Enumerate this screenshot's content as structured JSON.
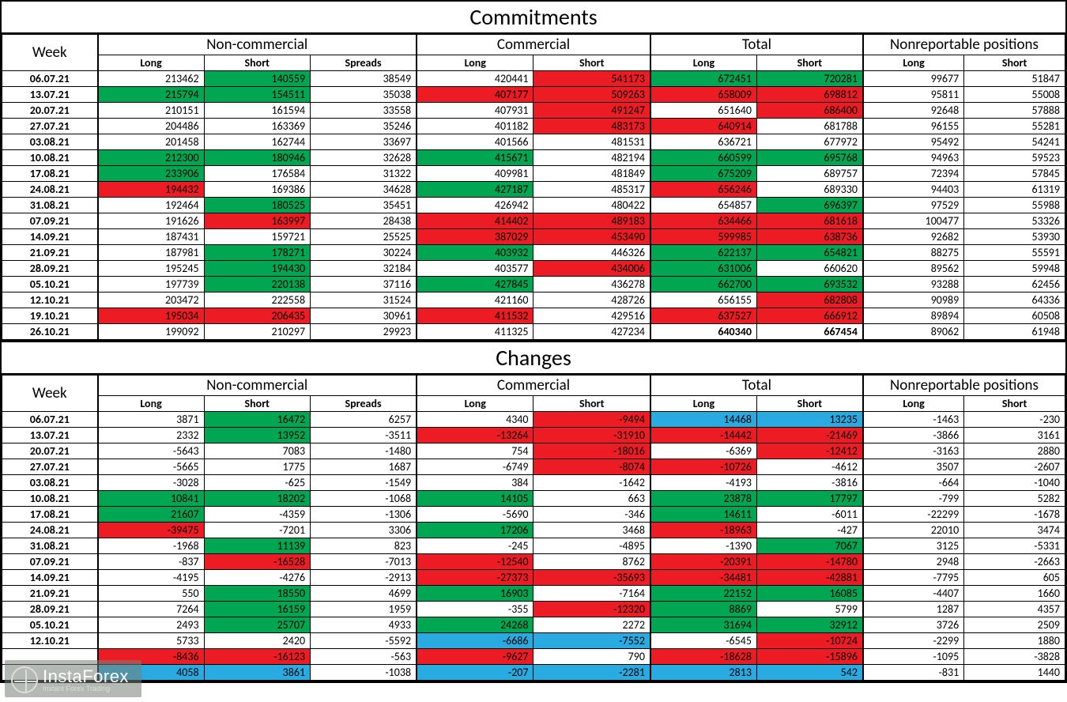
{
  "title_top": "Commitments",
  "title_bottom": "Changes",
  "colgroups": {
    "week": "Week",
    "nc": "Non-commercial",
    "co": "Commercial",
    "tot": "Total",
    "nr": "Nonreportable positions"
  },
  "subcols": [
    "Long",
    "Short",
    "Spreads",
    "Long",
    "Short",
    "Long",
    "Short",
    "Long",
    "Short"
  ],
  "colors": {
    "green": "#00a651",
    "red": "#ed1c24",
    "blue": "#29abe2",
    "none": ""
  },
  "col_widths_pct": [
    9,
    10,
    10,
    10,
    11,
    11,
    10,
    10,
    9.5,
    9.5
  ],
  "font": {
    "section_title_size": 28,
    "group_size": 19,
    "sub_size": 14,
    "cell_size": 14
  },
  "last_row_bold_cols": [
    5,
    6
  ],
  "commitments_rows": [
    {
      "week": "06.07.21",
      "v": [
        213462,
        140559,
        38549,
        420441,
        541173,
        672451,
        720281,
        99677,
        51847
      ],
      "c": [
        "",
        "g",
        "",
        "",
        "r",
        "g",
        "g",
        "",
        ""
      ]
    },
    {
      "week": "13.07.21",
      "v": [
        215794,
        154511,
        35038,
        407177,
        509263,
        658009,
        698812,
        95811,
        55008
      ],
      "c": [
        "g",
        "g",
        "",
        "r",
        "r",
        "r",
        "r",
        "",
        ""
      ]
    },
    {
      "week": "20.07.21",
      "v": [
        210151,
        161594,
        33558,
        407931,
        491247,
        651640,
        686400,
        92648,
        57888
      ],
      "c": [
        "",
        "",
        "",
        "",
        "r",
        "",
        "r",
        "",
        ""
      ]
    },
    {
      "week": "27.07.21",
      "v": [
        204486,
        163369,
        35246,
        401182,
        483173,
        640914,
        681788,
        96155,
        55281
      ],
      "c": [
        "",
        "",
        "",
        "",
        "r",
        "r",
        "",
        "",
        ""
      ]
    },
    {
      "week": "03.08.21",
      "v": [
        201458,
        162744,
        33697,
        401566,
        481531,
        636721,
        677972,
        95492,
        54241
      ],
      "c": [
        "",
        "",
        "",
        "",
        "",
        "",
        "",
        "",
        ""
      ]
    },
    {
      "week": "10.08.21",
      "v": [
        212300,
        180946,
        32628,
        415671,
        482194,
        660599,
        695768,
        94963,
        59523
      ],
      "c": [
        "g",
        "g",
        "",
        "g",
        "",
        "g",
        "g",
        "",
        ""
      ]
    },
    {
      "week": "17.08.21",
      "v": [
        233906,
        176584,
        31322,
        409981,
        481849,
        675209,
        689757,
        72394,
        57845
      ],
      "c": [
        "g",
        "",
        "",
        "",
        "",
        "g",
        "",
        "",
        ""
      ]
    },
    {
      "week": "24.08.21",
      "v": [
        194432,
        169386,
        34628,
        427187,
        485317,
        656246,
        689330,
        94403,
        61319
      ],
      "c": [
        "r",
        "",
        "",
        "g",
        "",
        "r",
        "",
        "",
        ""
      ]
    },
    {
      "week": "31.08.21",
      "v": [
        192464,
        180525,
        35451,
        426942,
        480422,
        654857,
        696397,
        97529,
        55988
      ],
      "c": [
        "",
        "g",
        "",
        "",
        "",
        "",
        "g",
        "",
        ""
      ]
    },
    {
      "week": "07.09.21",
      "v": [
        191626,
        163997,
        28438,
        414402,
        489183,
        634466,
        681618,
        100477,
        53326
      ],
      "c": [
        "",
        "r",
        "",
        "r",
        "r",
        "r",
        "r",
        "",
        ""
      ]
    },
    {
      "week": "14.09.21",
      "v": [
        187431,
        159721,
        25525,
        387029,
        453490,
        599985,
        638736,
        92682,
        53930
      ],
      "c": [
        "",
        "",
        "",
        "r",
        "r",
        "r",
        "r",
        "",
        ""
      ]
    },
    {
      "week": "21.09.21",
      "v": [
        187981,
        178271,
        30224,
        403932,
        446326,
        622137,
        654821,
        88275,
        55591
      ],
      "c": [
        "",
        "g",
        "",
        "g",
        "",
        "g",
        "g",
        "",
        ""
      ]
    },
    {
      "week": "28.09.21",
      "v": [
        195245,
        194430,
        32184,
        403577,
        434006,
        631006,
        660620,
        89562,
        59948
      ],
      "c": [
        "",
        "g",
        "",
        "",
        "r",
        "g",
        "",
        "",
        ""
      ]
    },
    {
      "week": "05.10.21",
      "v": [
        197739,
        220138,
        37116,
        427845,
        436278,
        662700,
        693532,
        93288,
        62456
      ],
      "c": [
        "",
        "g",
        "",
        "g",
        "",
        "g",
        "g",
        "",
        ""
      ]
    },
    {
      "week": "12.10.21",
      "v": [
        203472,
        222558,
        31524,
        421160,
        428726,
        656155,
        682808,
        90989,
        64336
      ],
      "c": [
        "",
        "",
        "",
        "",
        "",
        "",
        "r",
        "",
        ""
      ]
    },
    {
      "week": "19.10.21",
      "v": [
        195034,
        206435,
        30961,
        411532,
        429516,
        637527,
        666912,
        89894,
        60508
      ],
      "c": [
        "r",
        "r",
        "",
        "r",
        "",
        "r",
        "r",
        "",
        ""
      ]
    },
    {
      "week": "26.10.21",
      "v": [
        199092,
        210297,
        29923,
        411325,
        427234,
        640340,
        667454,
        89062,
        61948
      ],
      "c": [
        "",
        "",
        "",
        "",
        "",
        "",
        "",
        "",
        ""
      ],
      "bold_tot": true
    }
  ],
  "changes_rows": [
    {
      "week": "06.07.21",
      "v": [
        3871,
        16472,
        6257,
        4340,
        -9494,
        14468,
        13235,
        -1463,
        -230
      ],
      "c": [
        "",
        "g",
        "",
        "",
        "r",
        "b",
        "b",
        "",
        ""
      ]
    },
    {
      "week": "13.07.21",
      "v": [
        2332,
        13952,
        -3511,
        -13264,
        -31910,
        -14442,
        -21469,
        -3866,
        3161
      ],
      "c": [
        "",
        "g",
        "",
        "r",
        "r",
        "r",
        "r",
        "",
        ""
      ]
    },
    {
      "week": "20.07.21",
      "v": [
        -5643,
        7083,
        -1480,
        754,
        -18016,
        -6369,
        -12412,
        -3163,
        2880
      ],
      "c": [
        "",
        "",
        "",
        "",
        "r",
        "",
        "r",
        "",
        ""
      ]
    },
    {
      "week": "27.07.21",
      "v": [
        -5665,
        1775,
        1687,
        -6749,
        -8074,
        -10726,
        -4612,
        3507,
        -2607
      ],
      "c": [
        "",
        "",
        "",
        "",
        "r",
        "r",
        "",
        "",
        ""
      ]
    },
    {
      "week": "03.08.21",
      "v": [
        -3028,
        -625,
        -1549,
        384,
        -1642,
        -4193,
        -3816,
        -664,
        -1040
      ],
      "c": [
        "",
        "",
        "",
        "",
        "",
        "",
        "",
        "",
        ""
      ]
    },
    {
      "week": "10.08.21",
      "v": [
        10841,
        18202,
        -1068,
        14105,
        663,
        23878,
        17797,
        -799,
        5282
      ],
      "c": [
        "g",
        "g",
        "",
        "g",
        "",
        "g",
        "g",
        "",
        ""
      ]
    },
    {
      "week": "17.08.21",
      "v": [
        21607,
        -4359,
        -1306,
        -5690,
        -346,
        14611,
        -6011,
        -22299,
        -1678
      ],
      "c": [
        "g",
        "",
        "",
        "",
        "",
        "g",
        "",
        "",
        ""
      ]
    },
    {
      "week": "24.08.21",
      "v": [
        -39475,
        -7201,
        3306,
        17206,
        3468,
        -18963,
        -427,
        22010,
        3474
      ],
      "c": [
        "r",
        "",
        "",
        "g",
        "",
        "r",
        "",
        "",
        ""
      ]
    },
    {
      "week": "31.08.21",
      "v": [
        -1968,
        11139,
        823,
        -245,
        -4895,
        -1390,
        7067,
        3125,
        -5331
      ],
      "c": [
        "",
        "g",
        "",
        "",
        "",
        "",
        "g",
        "",
        ""
      ]
    },
    {
      "week": "07.09.21",
      "v": [
        -837,
        -16528,
        -7013,
        -12540,
        8762,
        -20391,
        -14780,
        2948,
        -2663
      ],
      "c": [
        "",
        "r",
        "",
        "r",
        "",
        "r",
        "r",
        "",
        ""
      ]
    },
    {
      "week": "14.09.21",
      "v": [
        -4195,
        -4276,
        -2913,
        -27373,
        -35693,
        -34481,
        -42881,
        -7795,
        605
      ],
      "c": [
        "",
        "",
        "",
        "r",
        "r",
        "r",
        "r",
        "",
        ""
      ]
    },
    {
      "week": "21.09.21",
      "v": [
        550,
        18550,
        4699,
        16903,
        -7164,
        22152,
        16085,
        -4407,
        1660
      ],
      "c": [
        "",
        "g",
        "",
        "g",
        "",
        "g",
        "g",
        "",
        ""
      ]
    },
    {
      "week": "28.09.21",
      "v": [
        7264,
        16159,
        1959,
        -355,
        -12320,
        8869,
        5799,
        1287,
        4357
      ],
      "c": [
        "",
        "g",
        "",
        "",
        "r",
        "g",
        "",
        "",
        ""
      ]
    },
    {
      "week": "05.10.21",
      "v": [
        2493,
        25707,
        4933,
        24268,
        2272,
        31694,
        32912,
        3726,
        2509
      ],
      "c": [
        "",
        "g",
        "",
        "g",
        "",
        "g",
        "g",
        "",
        ""
      ]
    },
    {
      "week": "12.10.21",
      "v": [
        5733,
        2420,
        -5592,
        -6686,
        -7552,
        -6545,
        -10724,
        -2299,
        1880
      ],
      "c": [
        "",
        "",
        "",
        "b",
        "b",
        "",
        "r",
        "",
        ""
      ]
    },
    {
      "week": "",
      "v": [
        -8436,
        -16123,
        -563,
        -9627,
        790,
        -18628,
        -15896,
        -1095,
        -3828
      ],
      "c": [
        "r",
        "r",
        "",
        "r",
        "",
        "r",
        "r",
        "",
        ""
      ]
    },
    {
      "week": "",
      "v": [
        4058,
        3861,
        -1038,
        -207,
        -2281,
        2813,
        542,
        -831,
        1440
      ],
      "c": [
        "b",
        "b",
        "",
        "b",
        "b",
        "b",
        "b",
        "",
        ""
      ]
    }
  ],
  "logo": {
    "line1": "InstaForex",
    "line2": "Instant Forex Trading"
  }
}
